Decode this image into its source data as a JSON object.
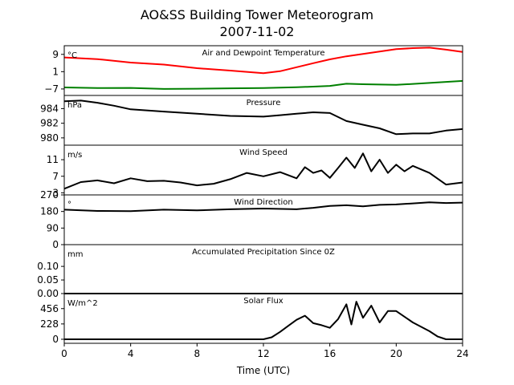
{
  "figure": {
    "title": "AO&SS Building Tower Meteorogram",
    "subtitle": "2007-11-02",
    "xlabel": "Time (UTC)",
    "x_ticks": [
      "0",
      "4",
      "8",
      "12",
      "16",
      "20",
      "24"
    ]
  },
  "chart_data": [
    {
      "type": "line",
      "title": "Air and Dewpoint Temperature",
      "unit": "°C",
      "xlim": [
        0,
        24
      ],
      "ylim": [
        -10,
        13
      ],
      "y_ticks": [
        "9",
        "1",
        "−7"
      ],
      "y_tick_values": [
        9,
        1,
        -7
      ],
      "series": [
        {
          "color": "#ff0000",
          "x": [
            0,
            2,
            4,
            6,
            8,
            10,
            12,
            13,
            15,
            16,
            17,
            18,
            19,
            20,
            21,
            22,
            23,
            24
          ],
          "values": [
            7.6,
            6.8,
            5.2,
            4.3,
            2.6,
            1.5,
            0.3,
            1.2,
            4.9,
            6.7,
            8.1,
            9.2,
            10.3,
            11.4,
            11.9,
            12.1,
            11.2,
            10.1
          ]
        },
        {
          "color": "#008000",
          "x": [
            0,
            2,
            4,
            6,
            8,
            10,
            12,
            14,
            16,
            17,
            18,
            20,
            22,
            24
          ],
          "values": [
            -6.3,
            -6.6,
            -6.5,
            -7.0,
            -6.9,
            -6.7,
            -6.6,
            -6.2,
            -5.6,
            -4.6,
            -4.8,
            -5.1,
            -4.2,
            -3.3
          ]
        }
      ]
    },
    {
      "type": "line",
      "title": "Pressure",
      "unit": "hPa",
      "xlim": [
        0,
        24
      ],
      "ylim": [
        979.0,
        985.8
      ],
      "y_ticks": [
        "984",
        "982",
        "980"
      ],
      "y_tick_values": [
        984,
        982,
        980
      ],
      "series": [
        {
          "color": "#000000",
          "x": [
            0,
            1,
            2,
            3,
            4,
            6,
            8,
            10,
            12,
            13,
            14,
            15,
            16,
            17,
            18,
            19,
            20,
            21,
            22,
            23,
            24
          ],
          "values": [
            985.0,
            985.1,
            984.8,
            984.4,
            983.9,
            983.6,
            983.3,
            983.0,
            982.9,
            983.1,
            983.3,
            983.5,
            983.4,
            982.3,
            981.8,
            981.3,
            980.5,
            980.6,
            980.6,
            981.0,
            981.2
          ]
        }
      ]
    },
    {
      "type": "line",
      "title": "Wind Speed",
      "unit": "m/s",
      "xlim": [
        0,
        24
      ],
      "ylim": [
        2.5,
        14.5
      ],
      "y_ticks": [
        "11",
        "7",
        "3"
      ],
      "y_tick_values": [
        11,
        7,
        3
      ],
      "series": [
        {
          "color": "#000000",
          "x": [
            0,
            1,
            2,
            3,
            4,
            5,
            6,
            7,
            8,
            9,
            10,
            11,
            12,
            13,
            14,
            14.5,
            15,
            15.5,
            16,
            16.5,
            17,
            17.5,
            18,
            18.5,
            19,
            19.5,
            20,
            20.5,
            21,
            22,
            23,
            24
          ],
          "values": [
            4.0,
            5.6,
            6.0,
            5.3,
            6.5,
            5.8,
            5.9,
            5.5,
            4.8,
            5.2,
            6.3,
            7.8,
            7.0,
            8.0,
            6.5,
            9.2,
            7.8,
            8.4,
            6.6,
            9.0,
            11.5,
            9.0,
            12.5,
            8.2,
            11.0,
            7.8,
            9.8,
            8.2,
            9.5,
            7.8,
            5.0,
            5.5
          ]
        }
      ]
    },
    {
      "type": "line",
      "title": "Wind Direction",
      "unit": "°",
      "xlim": [
        0,
        24
      ],
      "ylim": [
        0,
        270
      ],
      "y_ticks": [
        "270",
        "180",
        "90",
        "0"
      ],
      "y_tick_values": [
        270,
        180,
        90,
        0
      ],
      "series": [
        {
          "color": "#000000",
          "x": [
            0,
            2,
            4,
            6,
            8,
            10,
            12,
            14,
            15,
            16,
            17,
            18,
            19,
            20,
            21,
            22,
            23,
            24
          ],
          "values": [
            190,
            183,
            182,
            190,
            186,
            192,
            196,
            192,
            200,
            210,
            214,
            208,
            216,
            218,
            224,
            230,
            226,
            228
          ]
        }
      ]
    },
    {
      "type": "line",
      "title": "Accumulated Precipitation Since 0Z",
      "unit": "mm",
      "xlim": [
        0,
        24
      ],
      "ylim": [
        0,
        0.18
      ],
      "y_ticks": [
        "0.10",
        "0.05",
        "0.00"
      ],
      "y_tick_values": [
        0.1,
        0.05,
        0.0
      ],
      "series": [
        {
          "color": "#000000",
          "x": [
            0,
            24
          ],
          "values": [
            0,
            0
          ]
        }
      ]
    },
    {
      "type": "line",
      "title": "Solar Flux",
      "unit": "W/m^2",
      "xlim": [
        0,
        24
      ],
      "ylim": [
        -60,
        680
      ],
      "y_ticks": [
        "456",
        "228",
        "0"
      ],
      "y_tick_values": [
        456,
        228,
        0
      ],
      "series": [
        {
          "color": "#000000",
          "x": [
            0,
            12,
            12.5,
            13,
            13.5,
            14,
            14.5,
            15,
            15.5,
            16,
            16.5,
            17,
            17.3,
            17.6,
            18,
            18.5,
            19,
            19.5,
            20,
            21,
            22,
            22.5,
            23,
            24
          ],
          "values": [
            0,
            0,
            30,
            110,
            200,
            290,
            350,
            240,
            210,
            170,
            300,
            520,
            220,
            560,
            320,
            500,
            250,
            420,
            420,
            250,
            120,
            40,
            0,
            0
          ]
        }
      ]
    }
  ]
}
